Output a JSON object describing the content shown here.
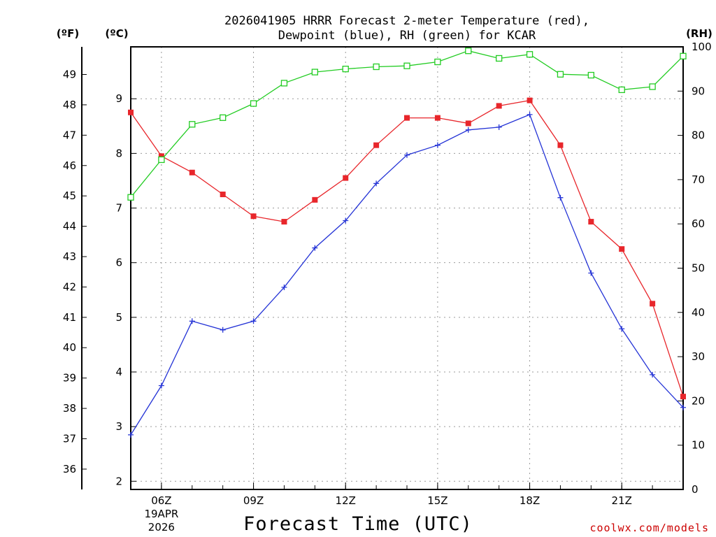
{
  "chart_data": {
    "type": "line",
    "title": {
      "line1": "2026041905 HRRR Forecast 2-meter Temperature (red),",
      "line2": "Dewpoint (blue), RH (green) for KCAR"
    },
    "xlabel": "Forecast Time (UTC)",
    "credit": "coolwx.com/models",
    "y_left_c": {
      "unit": "(ºC)",
      "lim": [
        1.85,
        9.95
      ],
      "ticks": [
        2,
        3,
        4,
        5,
        6,
        7,
        8,
        9
      ]
    },
    "y_left_f": {
      "unit": "(ºF)",
      "ticks": [
        36,
        37,
        38,
        39,
        40,
        41,
        42,
        43,
        44,
        45,
        46,
        47,
        48,
        49
      ]
    },
    "y_right_rh": {
      "unit": "(RH)",
      "lim": [
        0,
        100
      ],
      "ticks": [
        0,
        10,
        20,
        30,
        40,
        50,
        60,
        70,
        80,
        90,
        100
      ]
    },
    "x_hours": [
      5,
      6,
      7,
      8,
      9,
      10,
      11,
      12,
      13,
      14,
      15,
      16,
      17,
      18,
      19,
      20,
      21,
      22,
      23
    ],
    "x_lim": [
      5,
      23
    ],
    "x_ticks": [
      {
        "hour": 6,
        "label": "06Z",
        "date_line1": "19APR",
        "date_line2": "2026"
      },
      {
        "hour": 9,
        "label": "09Z"
      },
      {
        "hour": 12,
        "label": "12Z"
      },
      {
        "hour": 15,
        "label": "15Z"
      },
      {
        "hour": 18,
        "label": "18Z"
      },
      {
        "hour": 21,
        "label": "21Z"
      }
    ],
    "series": [
      {
        "name": "Temperature",
        "axis": "celsius",
        "color": "#e8262b",
        "marker": "filled-square",
        "values": [
          8.75,
          7.95,
          7.65,
          7.25,
          6.85,
          6.75,
          7.15,
          7.55,
          8.15,
          8.65,
          8.65,
          8.55,
          8.87,
          8.97,
          8.15,
          6.75,
          6.25,
          5.25,
          3.55
        ]
      },
      {
        "name": "Dewpoint",
        "axis": "celsius",
        "color": "#2433d6",
        "marker": "plus",
        "values": [
          2.85,
          3.75,
          4.93,
          4.77,
          4.93,
          5.55,
          6.27,
          6.77,
          7.45,
          7.97,
          8.15,
          8.43,
          8.48,
          8.71,
          7.19,
          5.81,
          4.79,
          3.95,
          3.35
        ]
      },
      {
        "name": "RH",
        "axis": "rh",
        "color": "#22cc22",
        "marker": "open-square",
        "values": [
          66,
          74.5,
          82.5,
          84,
          87.2,
          91.8,
          94.3,
          95,
          95.5,
          95.7,
          96.6,
          99.1,
          97.4,
          98.3,
          93.8,
          93.6,
          90.3,
          91,
          97.9
        ]
      }
    ]
  }
}
